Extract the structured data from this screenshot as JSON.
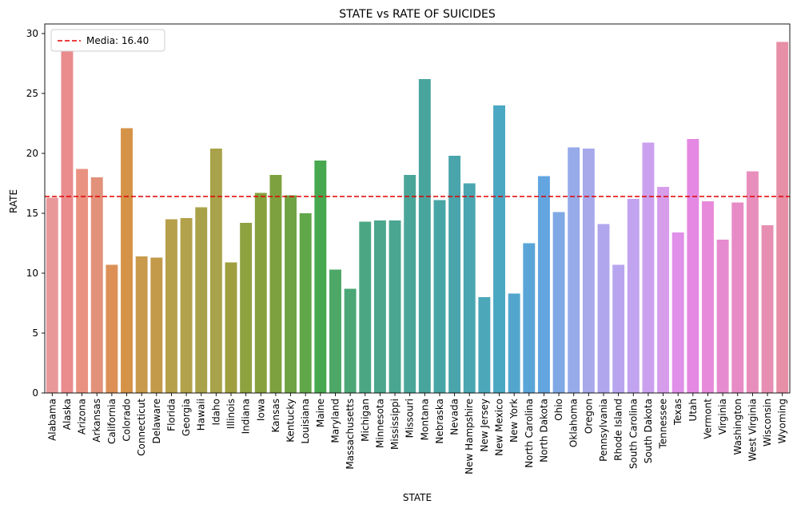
{
  "chart_data": {
    "type": "bar",
    "title": "STATE vs RATE OF SUICIDES",
    "xlabel": "STATE",
    "ylabel": "RATE",
    "ylim": [
      0,
      30.8
    ],
    "yticks": [
      0,
      5,
      10,
      15,
      20,
      25,
      30
    ],
    "grid": false,
    "legend": {
      "placement": "top-left",
      "label": "Media: 16.40"
    },
    "mean_line": {
      "value": 16.4,
      "color": "#e00000",
      "style": "dashed"
    },
    "categories": [
      "Alabama",
      "Alaska",
      "Arizona",
      "Arkansas",
      "California",
      "Colorado",
      "Connecticut",
      "Delaware",
      "Florida",
      "Georgia",
      "Hawaii",
      "Idaho",
      "Illinois",
      "Indiana",
      "Iowa",
      "Kansas",
      "Kentucky",
      "Louisiana",
      "Maine",
      "Maryland",
      "Massachusetts",
      "Michigan",
      "Minnesota",
      "Mississippi",
      "Missouri",
      "Montana",
      "Nebraska",
      "Nevada",
      "New Hampshire",
      "New Jersey",
      "New Mexico",
      "New York",
      "North Carolina",
      "North Dakota",
      "Ohio",
      "Oklahoma",
      "Oregon",
      "Pennsylvania",
      "Rhode Island",
      "South Carolina",
      "South Dakota",
      "Tennessee",
      "Texas",
      "Utah",
      "Vermont",
      "Virginia",
      "Washington",
      "West Virginia",
      "Wisconsin",
      "Wyoming"
    ],
    "values": [
      16.3,
      28.5,
      18.7,
      18.0,
      10.7,
      22.1,
      11.4,
      11.3,
      14.5,
      14.6,
      15.5,
      20.4,
      10.9,
      14.2,
      16.7,
      18.2,
      16.5,
      15.0,
      19.4,
      10.3,
      8.7,
      14.3,
      14.4,
      14.4,
      18.2,
      26.2,
      16.1,
      19.8,
      17.5,
      8.0,
      24.0,
      8.3,
      12.5,
      18.1,
      15.1,
      20.5,
      20.4,
      14.1,
      10.7,
      16.2,
      20.9,
      17.2,
      13.4,
      21.2,
      16.0,
      12.8,
      15.9,
      18.5,
      14.0,
      29.3
    ],
    "colors": [
      "#e9989a",
      "#ea8b8d",
      "#ea9282",
      "#e2917a",
      "#dc9056",
      "#d59348",
      "#c99a4b",
      "#c39a4a",
      "#b6a04a",
      "#b1a24b",
      "#aaa24a",
      "#a8a24a",
      "#9f9f3f",
      "#8ea23f",
      "#86a13e",
      "#7ea13f",
      "#6fa343",
      "#5fa748",
      "#47a84f",
      "#4da767",
      "#4ca776",
      "#4ba783",
      "#4ba68c",
      "#4aa691",
      "#4aa698",
      "#48a59d",
      "#48a5a5",
      "#49a5ab",
      "#4aa7b1",
      "#4ca7b9",
      "#4aa8c2",
      "#52a6cd",
      "#5aa5d8",
      "#63a5e0",
      "#7fa9e4",
      "#97aae9",
      "#a7a9eb",
      "#b0a6ed",
      "#b8a5ef",
      "#c2a3ef",
      "#cba1ef",
      "#d79deb",
      "#e090e8",
      "#e489e3",
      "#e78adb",
      "#e68bd0",
      "#e78bc6",
      "#e88ebd",
      "#e68fb3",
      "#e68fa6"
    ]
  }
}
